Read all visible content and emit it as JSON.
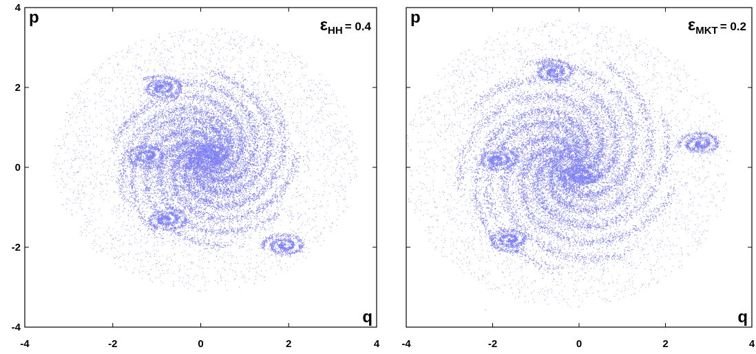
{
  "chart_data": [
    {
      "type": "scatter",
      "title": "",
      "xlabel": "q",
      "ylabel": "p",
      "xlim": [
        -4,
        4
      ],
      "ylim": [
        -4,
        4
      ],
      "xticks": [
        "-4",
        "-2",
        "0",
        "2",
        "4"
      ],
      "yticks": [
        "-4",
        "-2",
        "0",
        "2",
        "4"
      ],
      "grid": false,
      "point_color": "#1a1aee",
      "annotation": {
        "symbol": "ε",
        "subscript": "HH",
        "value": "= 0.4"
      },
      "distribution": {
        "center": [
          0.1,
          0.2
        ],
        "core_radius": 1.3,
        "halo_radius": 3.3,
        "islands": [
          [
            -0.8,
            -1.3
          ],
          [
            -0.9,
            2.0
          ],
          [
            1.9,
            -1.95
          ],
          [
            0.2,
            0.3
          ],
          [
            -1.2,
            0.3
          ]
        ]
      }
    },
    {
      "type": "scatter",
      "title": "",
      "xlabel": "q",
      "ylabel": "p",
      "xlim": [
        -4,
        4
      ],
      "ylim": [
        -4,
        4
      ],
      "xticks": [
        "-4",
        "-2",
        "0",
        "2",
        "4"
      ],
      "yticks": [
        "",
        "",
        "",
        "",
        ""
      ],
      "grid": false,
      "point_color": "#1a1aee",
      "annotation": {
        "symbol": "ε",
        "subscript": "MKT",
        "value": "= 0.2"
      },
      "distribution": {
        "center": [
          -0.3,
          0.1
        ],
        "core_radius": 1.6,
        "halo_radius": 3.6,
        "islands": [
          [
            -1.9,
            0.2
          ],
          [
            -0.6,
            2.4
          ],
          [
            2.8,
            0.6
          ],
          [
            0.1,
            -0.2
          ],
          [
            -1.6,
            -1.8
          ]
        ]
      }
    }
  ]
}
